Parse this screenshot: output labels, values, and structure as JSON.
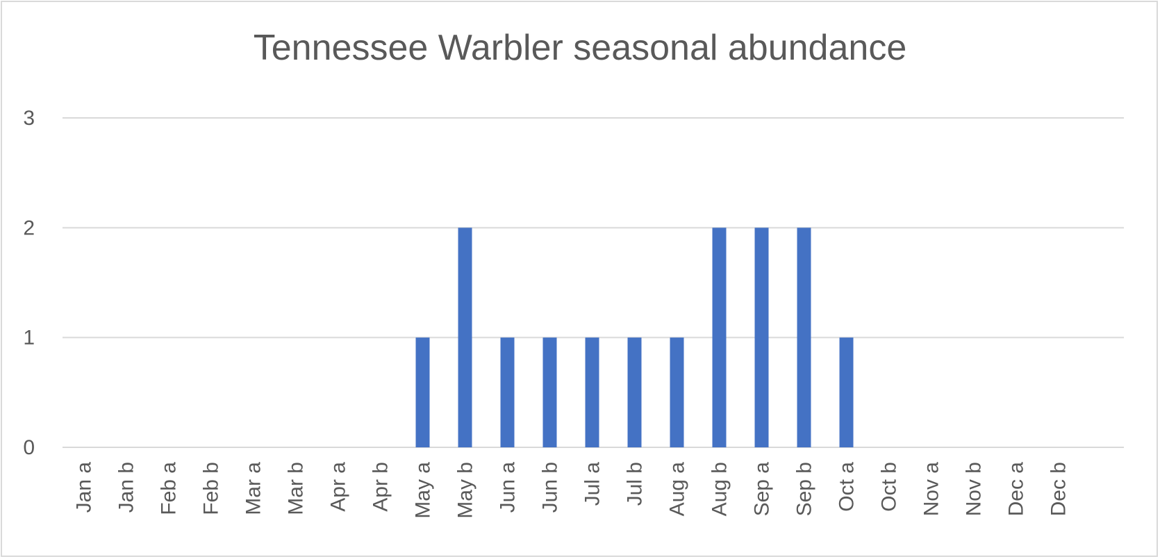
{
  "chart_data": {
    "type": "bar",
    "title": "Tennessee Warbler seasonal abundance",
    "xlabel": "",
    "ylabel": "",
    "categories": [
      "Jan a",
      "Jan b",
      "Feb a",
      "Feb b",
      "Mar a",
      "Mar b",
      "Apr a",
      "Apr b",
      "May a",
      "May b",
      "Jun a",
      "Jun b",
      "Jul a",
      "Jul b",
      "Aug a",
      "Aug b",
      "Sep a",
      "Sep b",
      "Oct a",
      "Oct b",
      "Nov a",
      "Nov b",
      "Dec a",
      "Dec b"
    ],
    "values": [
      0,
      0,
      0,
      0,
      0,
      0,
      0,
      0,
      1,
      2,
      1,
      1,
      1,
      1,
      1,
      2,
      2,
      2,
      1,
      0,
      0,
      0,
      0,
      0
    ],
    "ylim": [
      0,
      3
    ],
    "yticks": [
      0,
      1,
      2,
      3
    ],
    "grid": true,
    "legend": "none",
    "bar_color": "#4472c4",
    "grid_color": "#d9d9d9"
  }
}
